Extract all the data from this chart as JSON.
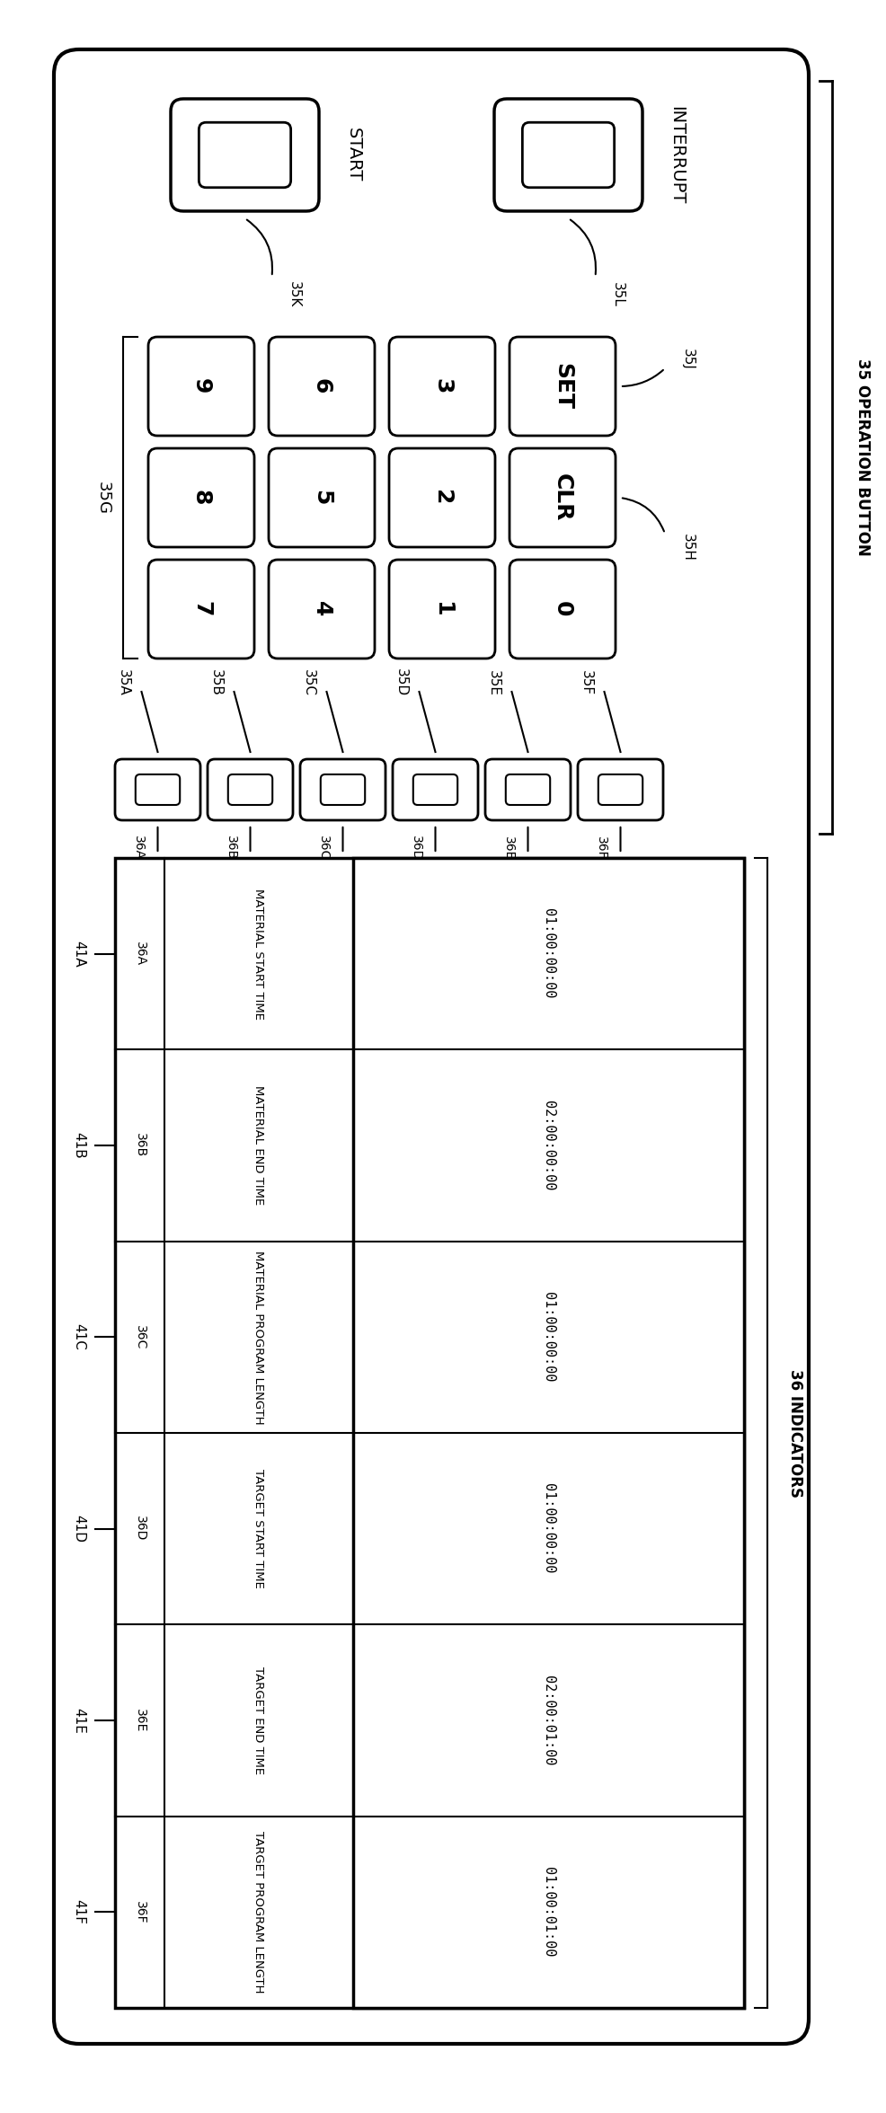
{
  "bg_color": "#ffffff",
  "fig_width": 9.86,
  "fig_height": 23.52,
  "operation_label": "35 OPERATION BUTTON",
  "indicators_label": "36 INDICATORS",
  "start_button_label": "START",
  "interrupt_button_label": "INTERRUPT",
  "start_ref": "35K",
  "interrupt_ref": "35L",
  "numpad_ref": "35G",
  "clr_ref": "35H",
  "set_ref": "35J",
  "numpad_keys": [
    [
      "9",
      "6",
      "3",
      "SET"
    ],
    [
      "8",
      "5",
      "2",
      "CLR"
    ],
    [
      "7",
      "4",
      "1",
      "0"
    ]
  ],
  "channel_refs_top": [
    "35A",
    "35B",
    "35C",
    "35D",
    "35E",
    "35F"
  ],
  "indicator_refs": [
    "36A",
    "36B",
    "36C",
    "36D",
    "36E",
    "36F"
  ],
  "timecodes": [
    "01:00:00:00",
    "02:00:00:00",
    "01:00:00:00",
    "01:00:00:00",
    "02:00:01:00",
    "01:00:01:00"
  ],
  "row_labels": [
    "MATERIAL START TIME",
    "MATERIAL END TIME",
    "MATERIAL PROGRAM LENGTH",
    "TARGET START TIME",
    "TARGET END TIME",
    "TARGET PROGRAM LENGTH"
  ],
  "row_refs": [
    "41A",
    "41B",
    "41C",
    "41D",
    "41E",
    "41F"
  ]
}
